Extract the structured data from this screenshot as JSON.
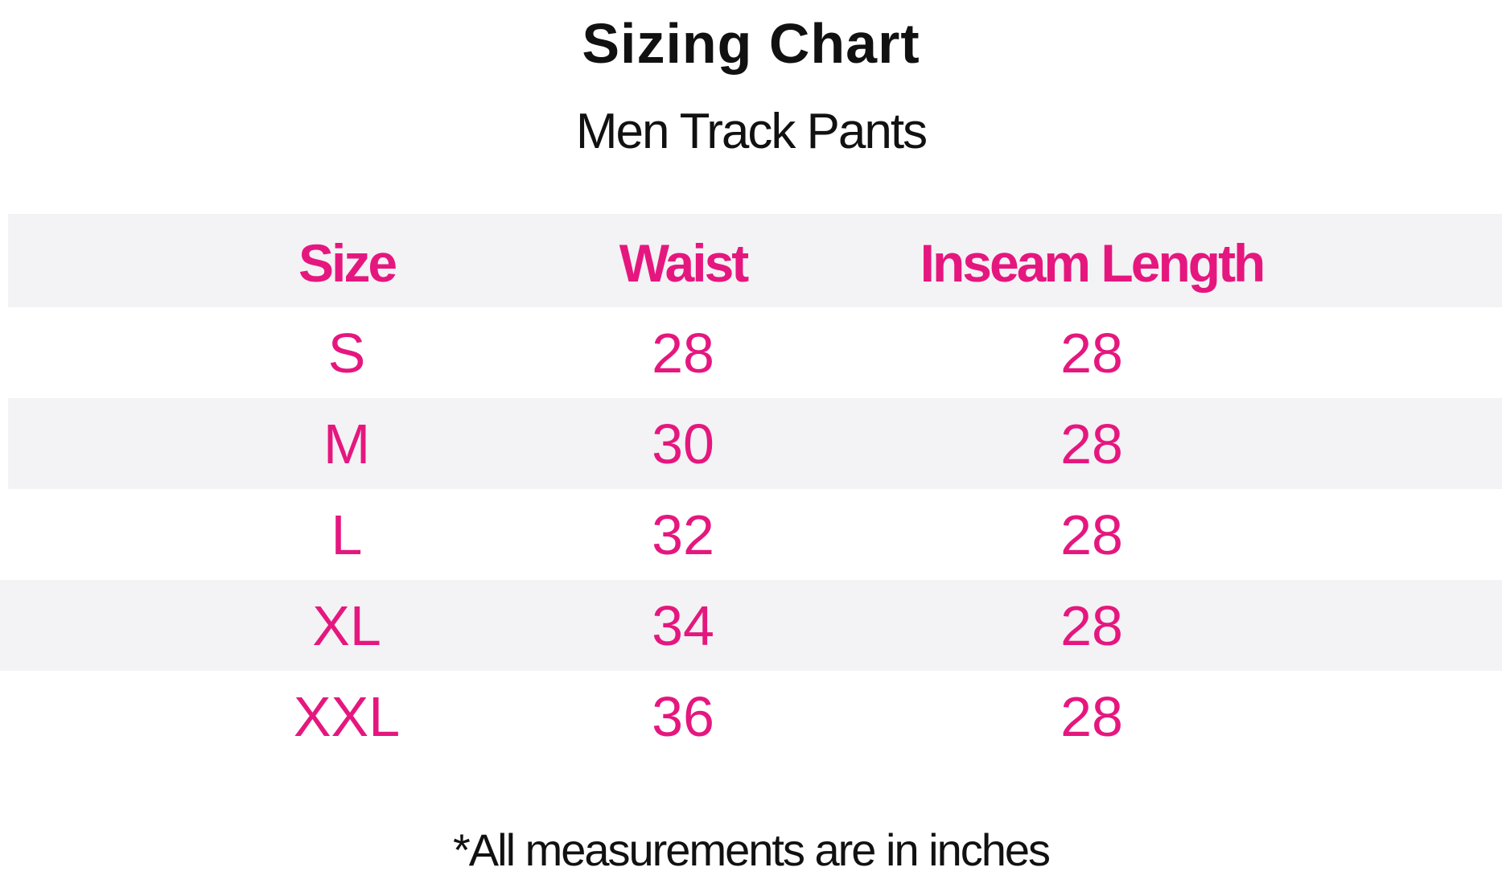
{
  "header": {
    "title": "Sizing Chart",
    "subtitle": "Men Track Pants"
  },
  "table": {
    "columns": [
      "Size",
      "Waist",
      "Inseam Length"
    ],
    "rows": [
      [
        "S",
        28,
        28
      ],
      [
        "M",
        30,
        28
      ],
      [
        "L",
        32,
        28
      ],
      [
        "XL",
        34,
        28
      ],
      [
        "XXL",
        36,
        28
      ]
    ]
  },
  "footnote": "*All measurements are in inches"
}
